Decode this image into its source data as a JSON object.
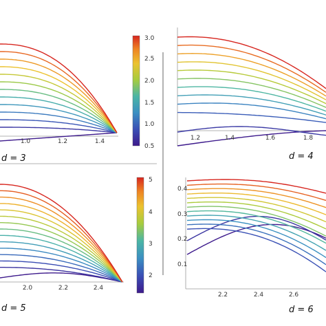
{
  "panels": [
    {
      "id": "d3",
      "label": "d = 3"
    },
    {
      "id": "d4",
      "label": "d = 4"
    },
    {
      "id": "d5",
      "label": "d = 5"
    },
    {
      "id": "d6",
      "label": "d = 6"
    }
  ],
  "colorbars": [
    {
      "id": "top",
      "ticks": [
        "3.0",
        "2.5",
        "2.0",
        "1.5",
        "1.0",
        "0.5"
      ],
      "range": [
        0.5,
        3.0
      ]
    },
    {
      "id": "bottom",
      "ticks": [
        "5",
        "4",
        "3",
        "2"
      ],
      "range": [
        1.5,
        5.0
      ]
    }
  ],
  "chart_data": [
    {
      "type": "line",
      "panel": "d = 3",
      "xticks": [
        "1.0",
        "1.2",
        "1.4"
      ],
      "xlim": [
        0.58,
        1.55
      ],
      "ylim": [
        0,
        1
      ],
      "xend": 1.5,
      "curves": 13,
      "color_scale": "rainbow (violet = 0.5 → red = 3.0)"
    },
    {
      "type": "line",
      "panel": "d = 4",
      "xticks": [
        "1.2",
        "1.4",
        "1.6",
        "1.8"
      ],
      "xlim": [
        1.0,
        1.85
      ],
      "ylim": [
        0,
        1
      ],
      "curves": 12
    },
    {
      "type": "line",
      "panel": "d = 5",
      "xticks": [
        "2.0",
        "2.2",
        "2.4"
      ],
      "xlim": [
        1.6,
        2.52
      ],
      "ylim": [
        0,
        1
      ],
      "xend": 2.5,
      "curves": 15,
      "color_scale": "rainbow (violet = 1.5 → red = 5)"
    },
    {
      "type": "line",
      "panel": "d = 6",
      "xticks": [
        "2.2",
        "2.4",
        "2.6"
      ],
      "yticks": [
        "0.1",
        "0.2",
        "0.3",
        "0.4"
      ],
      "xlim": [
        2.0,
        2.82
      ],
      "ylim": [
        0,
        0.45
      ],
      "curves": 14
    }
  ]
}
